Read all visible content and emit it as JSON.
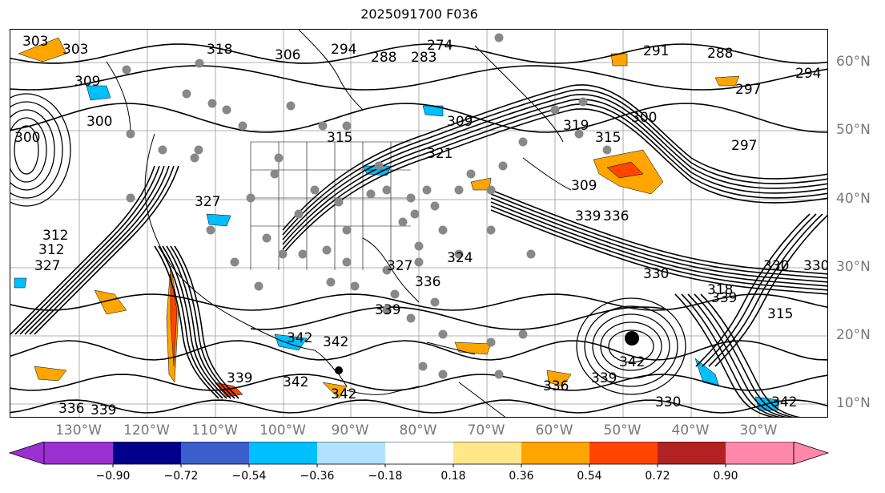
{
  "title": "2025091700 F036",
  "lat_labels": [
    "60°N",
    "50°N",
    "40°N",
    "30°N",
    "20°N",
    "10°N"
  ],
  "lon_labels": [
    "130°W",
    "120°W",
    "110°W",
    "100°W",
    "90°W",
    "80°W",
    "70°W",
    "60°W",
    "50°W",
    "40°W",
    "30°W"
  ],
  "colorbar": {
    "ticks": [
      "−0.90",
      "−0.72",
      "−0.54",
      "−0.36",
      "−0.18",
      "0.18",
      "0.36",
      "0.54",
      "0.72",
      "0.90"
    ],
    "colors": [
      "#9b30d0",
      "#00008b",
      "#3a5fcd",
      "#00bfff",
      "#b0e2ff",
      "#ffffff",
      "#ffe78a",
      "#ffa500",
      "#ff4500",
      "#b22222",
      "#ff88aa"
    ]
  },
  "contour_labels": [
    "303",
    "318",
    "306",
    "294",
    "288",
    "283",
    "291",
    "288",
    "294",
    "297",
    "309",
    "297",
    "300",
    "315",
    "315",
    "321",
    "319",
    "309",
    "312",
    "300",
    "300",
    "309",
    "327",
    "324",
    "327",
    "339",
    "336",
    "330",
    "339",
    "342",
    "342",
    "342",
    "336",
    "339",
    "336",
    "339",
    "330",
    "342",
    "339",
    "342",
    "318",
    "315",
    "330",
    "327",
    "342",
    "336",
    "339",
    "330",
    "312",
    "274",
    "303"
  ],
  "markers": {
    "storm_symbol": "circle"
  }
}
